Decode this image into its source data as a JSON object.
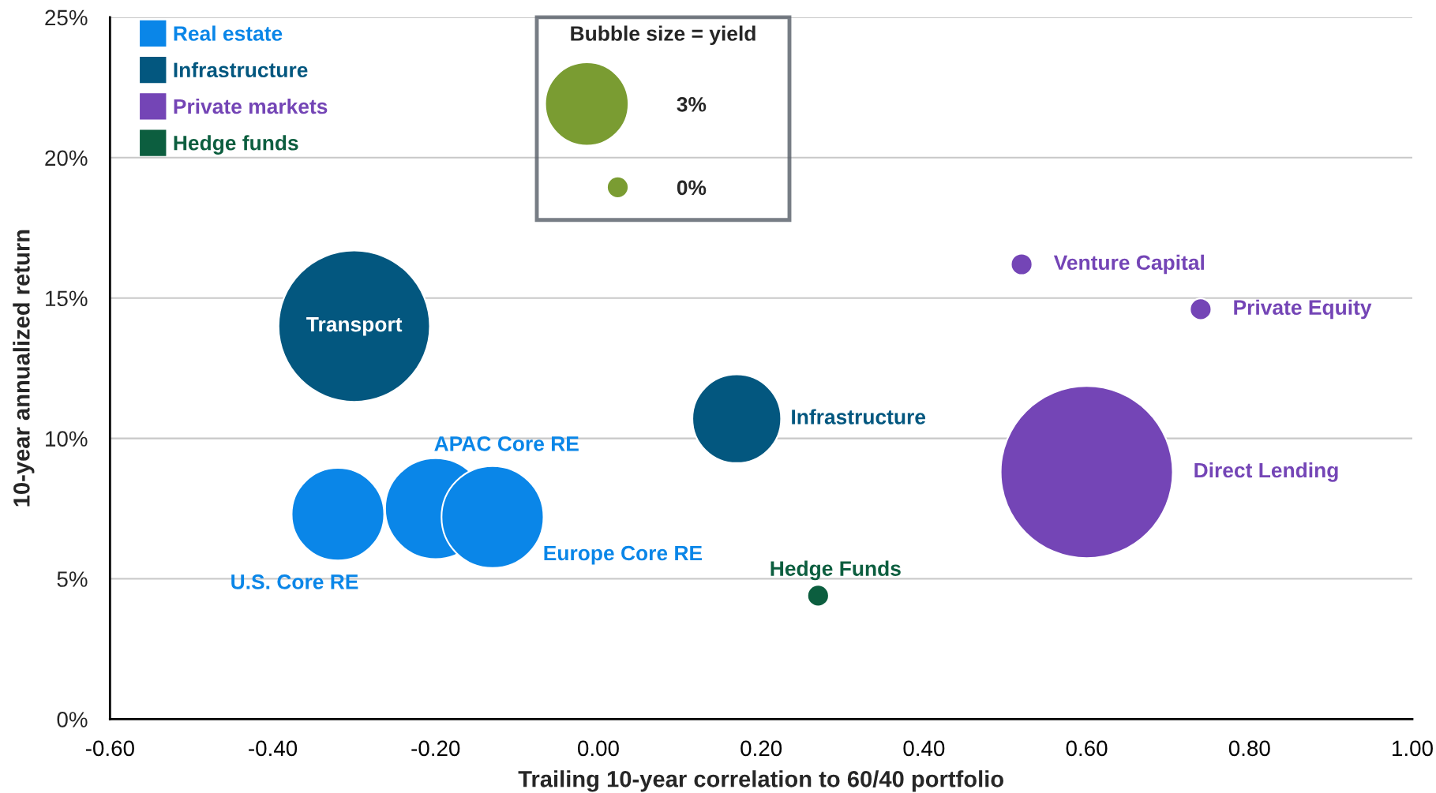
{
  "chart_data": {
    "type": "bubble",
    "xlabel": "Trailing 10-year correlation to 60/40 portfolio",
    "ylabel": "10-year annualized return",
    "legend_title": "Bubble size = yield",
    "xlim": [
      -0.6,
      1.0
    ],
    "xticks": [
      {
        "value": -0.6,
        "label": "-0.60"
      },
      {
        "value": -0.4,
        "label": "-0.40"
      },
      {
        "value": -0.2,
        "label": "-0.20"
      },
      {
        "value": 0,
        "label": "0.00"
      },
      {
        "value": 0.2,
        "label": "0.20"
      },
      {
        "value": 0.4,
        "label": "0.40"
      },
      {
        "value": 0.6,
        "label": "0.60"
      },
      {
        "value": 0.8,
        "label": "0.80"
      },
      {
        "value": 1.0,
        "label": "1.00"
      }
    ],
    "ylim": [
      0,
      25
    ],
    "yticks": [
      {
        "value": 0,
        "label": "0%"
      },
      {
        "value": 5,
        "label": "5%"
      },
      {
        "value": 10,
        "label": "10%"
      },
      {
        "value": 15,
        "label": "15%"
      },
      {
        "value": 20,
        "label": "20%"
      },
      {
        "value": 25,
        "label": "25%"
      }
    ],
    "grid": "y",
    "legend": "top left",
    "size_legend": [
      {
        "value": 3,
        "label": "3%"
      },
      {
        "value": 0.2,
        "label": "0%"
      }
    ],
    "series": [
      {
        "name": "Real estate",
        "color": "#0a86e8",
        "x": [
          -0.32,
          -0.2,
          -0.13
        ],
        "values": [
          7.3,
          7.5,
          7.2
        ],
        "sizes": [
          3.7,
          4.4,
          4.5
        ]
      },
      {
        "name": "Infrastructure",
        "color": "#03577f",
        "x": [
          -0.3,
          0.17
        ],
        "values": [
          14.0,
          10.7
        ],
        "sizes": [
          9.9,
          3.4
        ]
      },
      {
        "name": "Private markets",
        "color": "#7445b6",
        "x": [
          0.52,
          0.74,
          0.6
        ],
        "values": [
          16.2,
          14.6,
          8.8
        ],
        "sizes": [
          0.2,
          0.2,
          12.8
        ]
      },
      {
        "name": "Hedge funds",
        "color": "#0c5e3f",
        "x": [
          0.27
        ],
        "values": [
          4.4
        ],
        "sizes": [
          0.2
        ]
      }
    ],
    "annotations": [
      {
        "text": "U.S. Core RE",
        "x": -0.32,
        "y": 7.3
      },
      {
        "text": "APAC Core RE",
        "x": -0.2,
        "y": 7.5
      },
      {
        "text": "Europe Core RE",
        "x": -0.13,
        "y": 7.2
      },
      {
        "text": "Transport",
        "x": -0.3,
        "y": 14.0
      },
      {
        "text": "Infrastructure",
        "x": 0.17,
        "y": 10.7
      },
      {
        "text": "Venture Capital",
        "x": 0.52,
        "y": 16.2
      },
      {
        "text": "Private Equity",
        "x": 0.74,
        "y": 14.6
      },
      "Direct Lending",
      {
        "text": "Hedge Funds",
        "x": 0.27,
        "y": 4.4
      }
    ]
  }
}
